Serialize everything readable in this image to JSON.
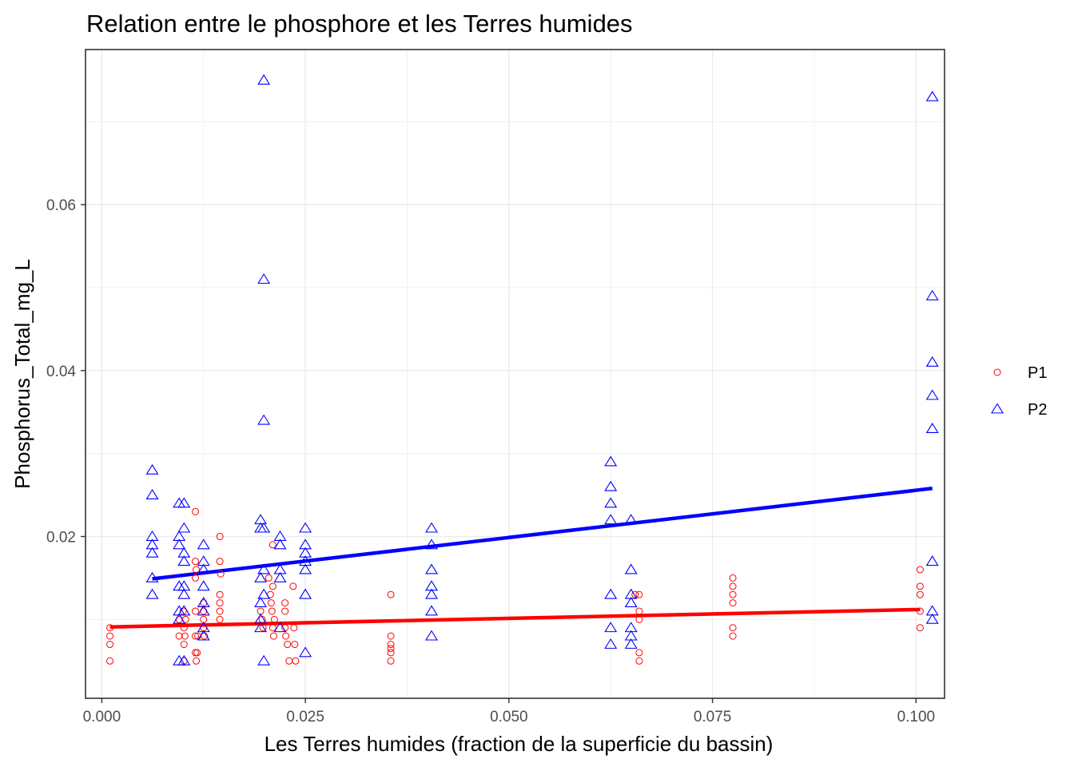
{
  "chart_data": {
    "type": "scatter",
    "title": "Relation entre le phosphore et les Terres humides",
    "xlabel": "Les Terres humides (fraction de la superficie du bassin)",
    "ylabel": "Phosphorus_Total_mg_L",
    "xlim": [
      -0.002,
      0.1035
    ],
    "ylim": [
      0.0005,
      0.0787
    ],
    "x_ticks": [
      0.0,
      0.025,
      0.05,
      0.075,
      0.1
    ],
    "x_tick_labels": [
      "0.000",
      "0.025",
      "0.050",
      "0.075",
      "0.100"
    ],
    "y_ticks": [
      0.02,
      0.04,
      0.06
    ],
    "y_tick_labels": [
      "0.02",
      "0.04",
      "0.06"
    ],
    "grid": true,
    "legend_position": "right",
    "series": [
      {
        "name": "P1",
        "color": "#ff0000",
        "marker": "circle",
        "points": [
          [
            0.001,
            0.009
          ],
          [
            0.001,
            0.008
          ],
          [
            0.001,
            0.007
          ],
          [
            0.001,
            0.005
          ],
          [
            0.0095,
            0.01
          ],
          [
            0.0095,
            0.008
          ],
          [
            0.01,
            0.011
          ],
          [
            0.0101,
            0.009
          ],
          [
            0.0101,
            0.007
          ],
          [
            0.0101,
            0.005
          ],
          [
            0.0102,
            0.008
          ],
          [
            0.0103,
            0.01
          ],
          [
            0.0115,
            0.023
          ],
          [
            0.0115,
            0.017
          ],
          [
            0.0115,
            0.015
          ],
          [
            0.0116,
            0.016
          ],
          [
            0.0115,
            0.011
          ],
          [
            0.0115,
            0.008
          ],
          [
            0.0115,
            0.006
          ],
          [
            0.0116,
            0.005
          ],
          [
            0.0117,
            0.006
          ],
          [
            0.0118,
            0.008
          ],
          [
            0.0125,
            0.012
          ],
          [
            0.0125,
            0.011
          ],
          [
            0.0125,
            0.01
          ],
          [
            0.0125,
            0.009
          ],
          [
            0.0126,
            0.008
          ],
          [
            0.0145,
            0.02
          ],
          [
            0.0145,
            0.017
          ],
          [
            0.0146,
            0.0155
          ],
          [
            0.0145,
            0.013
          ],
          [
            0.0145,
            0.012
          ],
          [
            0.0145,
            0.011
          ],
          [
            0.0145,
            0.01
          ],
          [
            0.0195,
            0.011
          ],
          [
            0.0197,
            0.01
          ],
          [
            0.0198,
            0.009
          ],
          [
            0.0205,
            0.015
          ],
          [
            0.0207,
            0.013
          ],
          [
            0.0208,
            0.012
          ],
          [
            0.0209,
            0.011
          ],
          [
            0.021,
            0.019
          ],
          [
            0.021,
            0.014
          ],
          [
            0.021,
            0.009
          ],
          [
            0.0211,
            0.008
          ],
          [
            0.0212,
            0.01
          ],
          [
            0.0225,
            0.012
          ],
          [
            0.0225,
            0.011
          ],
          [
            0.0225,
            0.009
          ],
          [
            0.0226,
            0.008
          ],
          [
            0.0228,
            0.007
          ],
          [
            0.023,
            0.005
          ],
          [
            0.0235,
            0.014
          ],
          [
            0.0236,
            0.009
          ],
          [
            0.0237,
            0.007
          ],
          [
            0.0238,
            0.005
          ],
          [
            0.0355,
            0.013
          ],
          [
            0.0355,
            0.008
          ],
          [
            0.0355,
            0.007
          ],
          [
            0.0355,
            0.0065
          ],
          [
            0.0355,
            0.006
          ],
          [
            0.0355,
            0.005
          ],
          [
            0.0655,
            0.013
          ],
          [
            0.066,
            0.013
          ],
          [
            0.066,
            0.011
          ],
          [
            0.066,
            0.01
          ],
          [
            0.066,
            0.006
          ],
          [
            0.066,
            0.005
          ],
          [
            0.0775,
            0.015
          ],
          [
            0.0775,
            0.014
          ],
          [
            0.0775,
            0.013
          ],
          [
            0.0775,
            0.012
          ],
          [
            0.0775,
            0.009
          ],
          [
            0.0775,
            0.008
          ],
          [
            0.1005,
            0.016
          ],
          [
            0.1005,
            0.014
          ],
          [
            0.1005,
            0.013
          ],
          [
            0.1005,
            0.011
          ],
          [
            0.1005,
            0.009
          ]
        ]
      },
      {
        "name": "P2",
        "color": "#0000ff",
        "marker": "triangle",
        "points": [
          [
            0.0062,
            0.028
          ],
          [
            0.0062,
            0.025
          ],
          [
            0.0062,
            0.02
          ],
          [
            0.0062,
            0.019
          ],
          [
            0.0062,
            0.018
          ],
          [
            0.0062,
            0.015
          ],
          [
            0.0062,
            0.013
          ],
          [
            0.0095,
            0.024
          ],
          [
            0.0095,
            0.02
          ],
          [
            0.0095,
            0.019
          ],
          [
            0.0095,
            0.014
          ],
          [
            0.0095,
            0.011
          ],
          [
            0.0095,
            0.01
          ],
          [
            0.0095,
            0.005
          ],
          [
            0.0101,
            0.024
          ],
          [
            0.0101,
            0.021
          ],
          [
            0.0101,
            0.018
          ],
          [
            0.0101,
            0.017
          ],
          [
            0.0101,
            0.014
          ],
          [
            0.0101,
            0.013
          ],
          [
            0.0101,
            0.011
          ],
          [
            0.0101,
            0.005
          ],
          [
            0.0125,
            0.019
          ],
          [
            0.0125,
            0.017
          ],
          [
            0.0125,
            0.016
          ],
          [
            0.0125,
            0.014
          ],
          [
            0.0125,
            0.012
          ],
          [
            0.0125,
            0.011
          ],
          [
            0.0125,
            0.009
          ],
          [
            0.0125,
            0.008
          ],
          [
            0.0195,
            0.022
          ],
          [
            0.0195,
            0.021
          ],
          [
            0.0195,
            0.015
          ],
          [
            0.0195,
            0.012
          ],
          [
            0.0195,
            0.01
          ],
          [
            0.0195,
            0.009
          ],
          [
            0.0199,
            0.075
          ],
          [
            0.0199,
            0.051
          ],
          [
            0.0199,
            0.034
          ],
          [
            0.0199,
            0.021
          ],
          [
            0.0199,
            0.016
          ],
          [
            0.0199,
            0.013
          ],
          [
            0.0199,
            0.005
          ],
          [
            0.0219,
            0.02
          ],
          [
            0.0219,
            0.019
          ],
          [
            0.0219,
            0.016
          ],
          [
            0.0219,
            0.015
          ],
          [
            0.0219,
            0.009
          ],
          [
            0.025,
            0.021
          ],
          [
            0.025,
            0.019
          ],
          [
            0.025,
            0.018
          ],
          [
            0.025,
            0.017
          ],
          [
            0.025,
            0.016
          ],
          [
            0.025,
            0.013
          ],
          [
            0.025,
            0.006
          ],
          [
            0.0405,
            0.021
          ],
          [
            0.0405,
            0.019
          ],
          [
            0.0405,
            0.016
          ],
          [
            0.0405,
            0.014
          ],
          [
            0.0405,
            0.013
          ],
          [
            0.0405,
            0.011
          ],
          [
            0.0405,
            0.008
          ],
          [
            0.0625,
            0.029
          ],
          [
            0.0625,
            0.026
          ],
          [
            0.0625,
            0.024
          ],
          [
            0.0625,
            0.022
          ],
          [
            0.0625,
            0.013
          ],
          [
            0.0625,
            0.009
          ],
          [
            0.0625,
            0.007
          ],
          [
            0.065,
            0.022
          ],
          [
            0.065,
            0.016
          ],
          [
            0.065,
            0.013
          ],
          [
            0.065,
            0.012
          ],
          [
            0.065,
            0.009
          ],
          [
            0.065,
            0.008
          ],
          [
            0.065,
            0.007
          ],
          [
            0.102,
            0.073
          ],
          [
            0.102,
            0.049
          ],
          [
            0.102,
            0.041
          ],
          [
            0.102,
            0.037
          ],
          [
            0.102,
            0.033
          ],
          [
            0.102,
            0.017
          ],
          [
            0.102,
            0.011
          ],
          [
            0.102,
            0.01
          ]
        ]
      }
    ],
    "fit_lines": [
      {
        "series": "P1",
        "color": "#ff0000",
        "x": [
          0.001,
          0.1005
        ],
        "y": [
          0.0091,
          0.0112
        ]
      },
      {
        "series": "P2",
        "color": "#0000ff",
        "x": [
          0.0062,
          0.102
        ],
        "y": [
          0.0149,
          0.0258
        ]
      }
    ]
  }
}
